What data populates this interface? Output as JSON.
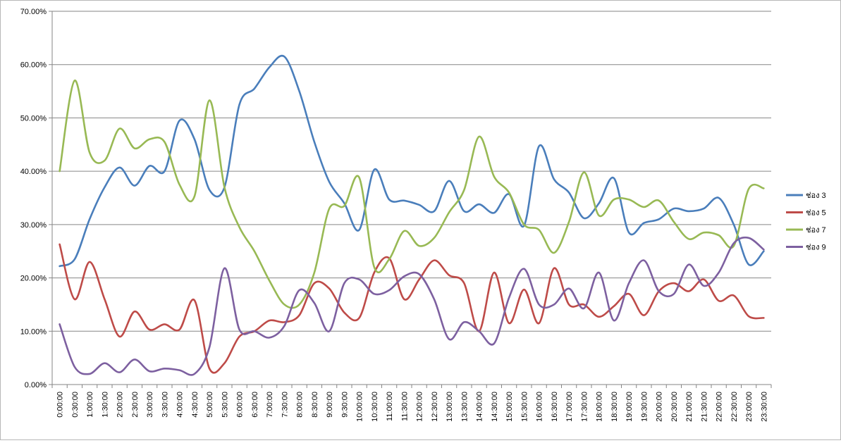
{
  "chart_data": {
    "type": "line",
    "categories": [
      "0:00:00",
      "0:30:00",
      "1:00:00",
      "1:30:00",
      "2:00:00",
      "2:30:00",
      "3:00:00",
      "3:30:00",
      "4:00:00",
      "4:30:00",
      "5:00:00",
      "5:30:00",
      "6:00:00",
      "6:30:00",
      "7:00:00",
      "7:30:00",
      "8:00:00",
      "8:30:00",
      "9:00:00",
      "9:30:00",
      "10:00:00",
      "10:30:00",
      "11:00:00",
      "11:30:00",
      "12:00:00",
      "12:30:00",
      "13:00:00",
      "13:30:00",
      "14:00:00",
      "14:30:00",
      "15:00:00",
      "15:30:00",
      "16:00:00",
      "16:30:00",
      "17:00:00",
      "17:30:00",
      "18:00:00",
      "18:30:00",
      "19:00:00",
      "19:30:00",
      "20:00:00",
      "20:30:00",
      "21:00:00",
      "21:30:00",
      "22:00:00",
      "22:30:00",
      "23:00:00",
      "23:30:00"
    ],
    "y_ticks": [
      "0.00%",
      "10.00%",
      "20.00%",
      "30.00%",
      "40.00%",
      "50.00%",
      "60.00%",
      "70.00%"
    ],
    "ylim": [
      0,
      70
    ],
    "grid": true,
    "legend_position": "right",
    "series": [
      {
        "name": "ช่อง 3",
        "color": "#4a7ebb",
        "values": [
          22.2,
          23.5,
          31.0,
          37.0,
          40.7,
          37.3,
          41.0,
          40.0,
          49.5,
          46.0,
          36.5,
          37.0,
          52.5,
          55.5,
          59.5,
          61.5,
          55.0,
          45.5,
          38.0,
          34.0,
          29.0,
          40.3,
          34.7,
          34.5,
          33.7,
          32.5,
          38.2,
          32.5,
          33.8,
          32.2,
          35.7,
          29.8,
          44.7,
          38.5,
          36.0,
          31.2,
          34.0,
          38.7,
          28.5,
          30.3,
          31.0,
          33.0,
          32.5,
          33.0,
          35.0,
          30.0,
          22.5,
          25.0
        ]
      },
      {
        "name": "ช่อง 5",
        "color": "#be4b48",
        "values": [
          26.3,
          16.0,
          23.0,
          16.0,
          9.0,
          13.7,
          10.3,
          11.3,
          10.3,
          15.8,
          3.0,
          4.0,
          9.0,
          10.0,
          12.0,
          11.7,
          13.0,
          19.0,
          18.0,
          13.5,
          12.5,
          21.0,
          23.7,
          16.0,
          19.7,
          23.3,
          20.5,
          19.0,
          10.0,
          21.0,
          11.5,
          17.8,
          11.5,
          21.8,
          15.0,
          15.0,
          12.7,
          14.7,
          17.0,
          13.0,
          17.5,
          19.0,
          17.5,
          19.7,
          15.7,
          16.7,
          12.8,
          12.5
        ]
      },
      {
        "name": "ช่อง 7",
        "color": "#98b954",
        "values": [
          40.0,
          57.0,
          43.5,
          42.0,
          48.0,
          44.3,
          46.0,
          45.5,
          37.5,
          35.3,
          53.3,
          37.0,
          29.5,
          25.0,
          19.5,
          15.0,
          15.0,
          21.0,
          33.0,
          33.5,
          38.8,
          22.0,
          23.5,
          28.8,
          26.0,
          27.5,
          32.3,
          36.5,
          46.5,
          39.0,
          36.0,
          30.0,
          29.0,
          24.7,
          30.5,
          39.8,
          31.7,
          34.7,
          34.7,
          33.3,
          34.5,
          30.5,
          27.3,
          28.5,
          28.0,
          26.0,
          36.7,
          36.8
        ]
      },
      {
        "name": "ช่อง 9",
        "color": "#7d60a0",
        "values": [
          11.3,
          3.3,
          2.0,
          4.0,
          2.3,
          4.7,
          2.5,
          3.0,
          2.7,
          2.0,
          7.0,
          21.8,
          10.3,
          10.0,
          8.8,
          11.0,
          17.7,
          15.3,
          10.0,
          19.0,
          19.7,
          17.0,
          17.7,
          20.3,
          20.7,
          16.0,
          8.5,
          11.7,
          10.0,
          7.7,
          16.3,
          21.7,
          15.0,
          15.0,
          18.0,
          14.3,
          21.0,
          12.0,
          19.0,
          23.3,
          17.5,
          17.0,
          22.5,
          18.5,
          21.0,
          26.5,
          27.5,
          25.3
        ]
      }
    ]
  }
}
